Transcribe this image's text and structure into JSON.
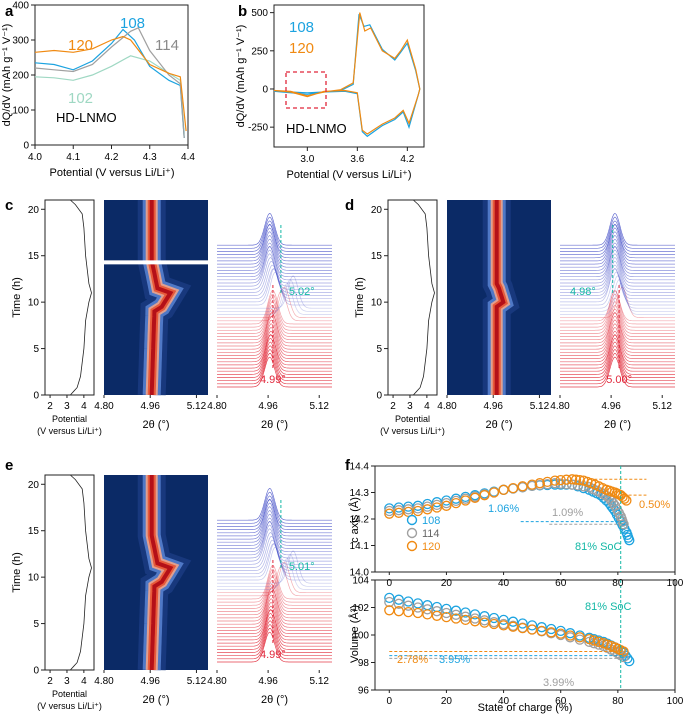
{
  "colors": {
    "c108": "#1ca3e0",
    "c114": "#a0a0a0",
    "c120": "#f08a12",
    "c102": "#9fd8c3",
    "red": "#e0263a",
    "teal": "#14b8a6",
    "navy": "#0b2a66",
    "axis": "#222222"
  },
  "panels": {
    "a": "a",
    "b": "b",
    "c": "c",
    "d": "d",
    "e": "e",
    "f": "f"
  },
  "strip": {
    "ylabel": "Time (h)",
    "potential_label": "Potential",
    "potential_unit": "(V versus Li/Li⁺)",
    "twotheta_label": "2θ (°)",
    "pot_ticks": [
      "2",
      "3",
      "4"
    ],
    "theta_ticks": [
      "4.80",
      "4.96",
      "5.12"
    ],
    "time_ticks": [
      "0",
      "5",
      "10",
      "15",
      "20"
    ]
  },
  "panel_c": {
    "red_label": "4.99°",
    "teal_label": "5.02°"
  },
  "panel_d": {
    "red_label": "5.00°",
    "teal_label": "4.98°"
  },
  "panel_e": {
    "red_label": "4.99°",
    "teal_label": "5.01°"
  },
  "chart_data": [
    {
      "id": "a",
      "type": "line",
      "title": "HD-LNMO",
      "xlabel": "Potential (V versus Li/Li⁺)",
      "ylabel": "dQ/dV (mAh g⁻¹ V⁻¹)",
      "xlim": [
        4.0,
        4.4
      ],
      "ylim": [
        0,
        400
      ],
      "xticks": [
        "4.0",
        "4.1",
        "4.2",
        "4.3",
        "4.4"
      ],
      "yticks": [
        "0",
        "100",
        "200",
        "300",
        "400"
      ],
      "series": [
        {
          "name": "102",
          "x": [
            4.0,
            4.05,
            4.1,
            4.15,
            4.2,
            4.25,
            4.3,
            4.35,
            4.38,
            4.39
          ],
          "y": [
            195,
            192,
            185,
            200,
            225,
            255,
            240,
            205,
            185,
            30
          ]
        },
        {
          "name": "108",
          "x": [
            4.0,
            4.05,
            4.1,
            4.15,
            4.2,
            4.23,
            4.26,
            4.3,
            4.35,
            4.38,
            4.39
          ],
          "y": [
            235,
            230,
            215,
            240,
            290,
            330,
            300,
            225,
            185,
            170,
            20
          ]
        },
        {
          "name": "114",
          "x": [
            4.0,
            4.05,
            4.1,
            4.15,
            4.2,
            4.25,
            4.27,
            4.3,
            4.35,
            4.38,
            4.39
          ],
          "y": [
            220,
            215,
            210,
            230,
            280,
            325,
            335,
            270,
            200,
            175,
            20
          ]
        },
        {
          "name": "120",
          "x": [
            4.0,
            4.05,
            4.1,
            4.15,
            4.2,
            4.23,
            4.25,
            4.3,
            4.35,
            4.38,
            4.395
          ],
          "y": [
            265,
            270,
            265,
            275,
            300,
            310,
            300,
            230,
            205,
            195,
            40
          ]
        }
      ]
    },
    {
      "id": "b",
      "type": "line",
      "title": "HD-LNMO",
      "xlabel": "Potential (V versus Li/Li⁺)",
      "ylabel": "dQ/dV (mAh g⁻¹ V⁻¹)",
      "xlim": [
        2.6,
        4.4
      ],
      "ylim": [
        -380,
        550
      ],
      "xticks": [
        "3.0",
        "3.6",
        "4.2"
      ],
      "yticks": [
        "-250",
        "0",
        "250",
        "500"
      ],
      "series": [
        {
          "name": "108",
          "x": [
            2.6,
            2.8,
            3.0,
            3.2,
            3.4,
            3.55,
            3.62,
            3.68,
            3.75,
            3.9,
            4.05,
            4.12,
            4.2,
            4.3,
            4.35,
            4.33,
            4.22,
            4.15,
            4.05,
            3.9,
            3.72,
            3.66,
            3.6,
            3.45,
            3.2,
            3.0,
            2.8,
            2.6
          ],
          "y": [
            -15,
            -20,
            -25,
            -20,
            -10,
            30,
            490,
            410,
            420,
            260,
            190,
            240,
            300,
            120,
            0,
            -40,
            -250,
            -150,
            -200,
            -240,
            -310,
            -280,
            -30,
            -15,
            -20,
            -35,
            -25,
            -15
          ]
        },
        {
          "name": "120",
          "x": [
            2.6,
            2.8,
            3.0,
            3.2,
            3.4,
            3.55,
            3.63,
            3.69,
            3.76,
            3.9,
            4.05,
            4.12,
            4.2,
            4.3,
            4.35,
            4.33,
            4.22,
            4.15,
            4.05,
            3.9,
            3.72,
            3.66,
            3.6,
            3.45,
            3.2,
            3.0,
            2.8,
            2.6
          ],
          "y": [
            -10,
            -15,
            -45,
            -20,
            -5,
            40,
            500,
            380,
            400,
            250,
            200,
            250,
            320,
            130,
            0,
            -40,
            -225,
            -140,
            -190,
            -230,
            -295,
            -270,
            -25,
            -10,
            -15,
            -50,
            -20,
            -10
          ]
        }
      ]
    },
    {
      "id": "f-c",
      "type": "scatter",
      "xlabel": "State of charge (%)",
      "ylabel": "c axis (Å)",
      "xlim": [
        -5,
        100
      ],
      "ylim": [
        14.0,
        14.4
      ],
      "xticks": [
        "0",
        "20",
        "40",
        "60",
        "80",
        "100"
      ],
      "yticks": [
        "14.0",
        "14.1",
        "14.2",
        "14.3",
        "14.4"
      ],
      "marker": "81% SoC",
      "annotations": [
        "1.06%",
        "1.09%",
        "0.50%"
      ],
      "series": [
        {
          "name": "108",
          "x": [
            0,
            10,
            20,
            30,
            40,
            50,
            58,
            64,
            70,
            74,
            77,
            79,
            81,
            83,
            84
          ],
          "y": [
            14.24,
            14.25,
            14.27,
            14.29,
            14.31,
            14.325,
            14.33,
            14.33,
            14.31,
            14.29,
            14.26,
            14.23,
            14.19,
            14.15,
            14.12
          ]
        },
        {
          "name": "114",
          "x": [
            0,
            10,
            20,
            30,
            40,
            50,
            58,
            64,
            70,
            74,
            77,
            79,
            81,
            82
          ],
          "y": [
            14.23,
            14.24,
            14.26,
            14.285,
            14.31,
            14.325,
            14.335,
            14.33,
            14.32,
            14.3,
            14.28,
            14.25,
            14.21,
            14.18
          ]
        },
        {
          "name": "120",
          "x": [
            0,
            10,
            20,
            30,
            40,
            50,
            58,
            64,
            68,
            72,
            76,
            79,
            81,
            83
          ],
          "y": [
            14.22,
            14.23,
            14.25,
            14.28,
            14.31,
            14.33,
            14.345,
            14.35,
            14.345,
            14.33,
            14.31,
            14.3,
            14.29,
            14.27
          ]
        }
      ]
    },
    {
      "id": "f-v",
      "type": "scatter",
      "xlabel": "State of charge (%)",
      "ylabel": "Volume (Å³)",
      "xlim": [
        -5,
        100
      ],
      "ylim": [
        96,
        104
      ],
      "xticks": [
        "0",
        "20",
        "40",
        "60",
        "80",
        "100"
      ],
      "yticks": [
        "96",
        "98",
        "100",
        "102",
        "104"
      ],
      "marker": "81% SoC",
      "annotations": [
        "2.78%",
        "3.95%",
        "3.99%"
      ],
      "series": [
        {
          "name": "108",
          "x": [
            0,
            10,
            20,
            30,
            40,
            50,
            60,
            70,
            75,
            79,
            82,
            84
          ],
          "y": [
            102.7,
            102.3,
            101.9,
            101.5,
            101.1,
            100.7,
            100.3,
            99.8,
            99.5,
            99.1,
            98.7,
            98.1
          ]
        },
        {
          "name": "114",
          "x": [
            0,
            10,
            20,
            30,
            40,
            50,
            60,
            70,
            75,
            79,
            82
          ],
          "y": [
            102.4,
            102.0,
            101.6,
            101.2,
            100.8,
            100.4,
            100.0,
            99.5,
            99.2,
            98.8,
            98.4
          ]
        },
        {
          "name": "120",
          "x": [
            0,
            10,
            20,
            30,
            40,
            50,
            60,
            70,
            75,
            79,
            82
          ],
          "y": [
            101.8,
            101.6,
            101.3,
            101.0,
            100.7,
            100.4,
            100.1,
            99.7,
            99.4,
            99.1,
            98.8
          ]
        }
      ]
    }
  ]
}
